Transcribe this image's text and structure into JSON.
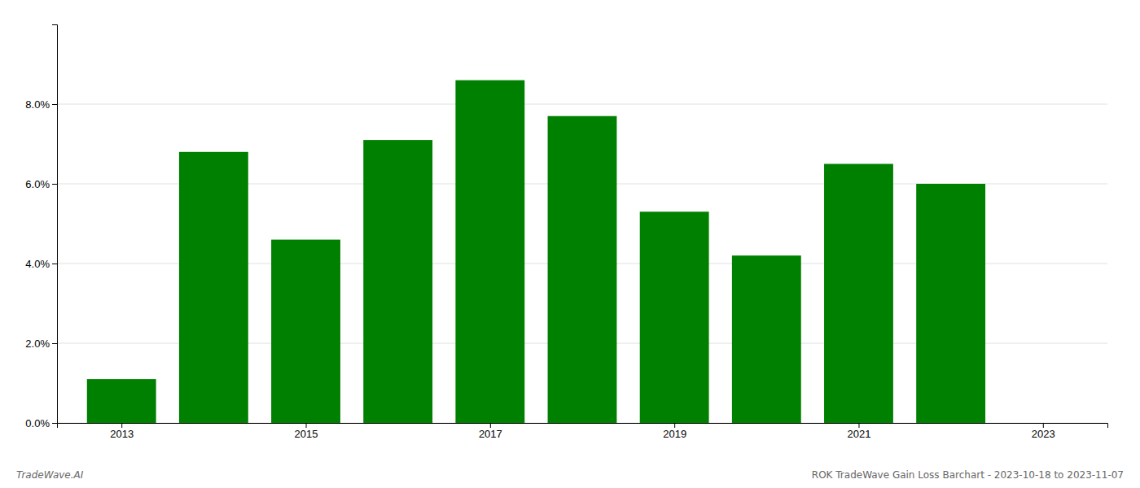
{
  "chart_data": {
    "type": "bar",
    "x": [
      2013,
      2014,
      2015,
      2016,
      2017,
      2018,
      2019,
      2020,
      2021,
      2022
    ],
    "values": [
      0.011,
      0.068,
      0.046,
      0.071,
      0.086,
      0.077,
      0.053,
      0.042,
      0.065,
      0.06
    ],
    "color": "#008000",
    "xlim": [
      2012.3,
      2023.7
    ],
    "xticks": [
      2013,
      2015,
      2017,
      2019,
      2021,
      2023
    ],
    "ylim": [
      0,
      0.1
    ],
    "yticks": [
      {
        "value": 0.0,
        "label": "0.0%"
      },
      {
        "value": 0.02,
        "label": "2.0%"
      },
      {
        "value": 0.04,
        "label": "4.0%"
      },
      {
        "value": 0.06,
        "label": "6.0%"
      },
      {
        "value": 0.08,
        "label": "8.0%"
      }
    ],
    "grid": true,
    "annotations": [
      "TradeWave.AI",
      "ROK TradeWave Gain Loss Barchart - 2023-10-18 to 2023-11-07"
    ]
  }
}
